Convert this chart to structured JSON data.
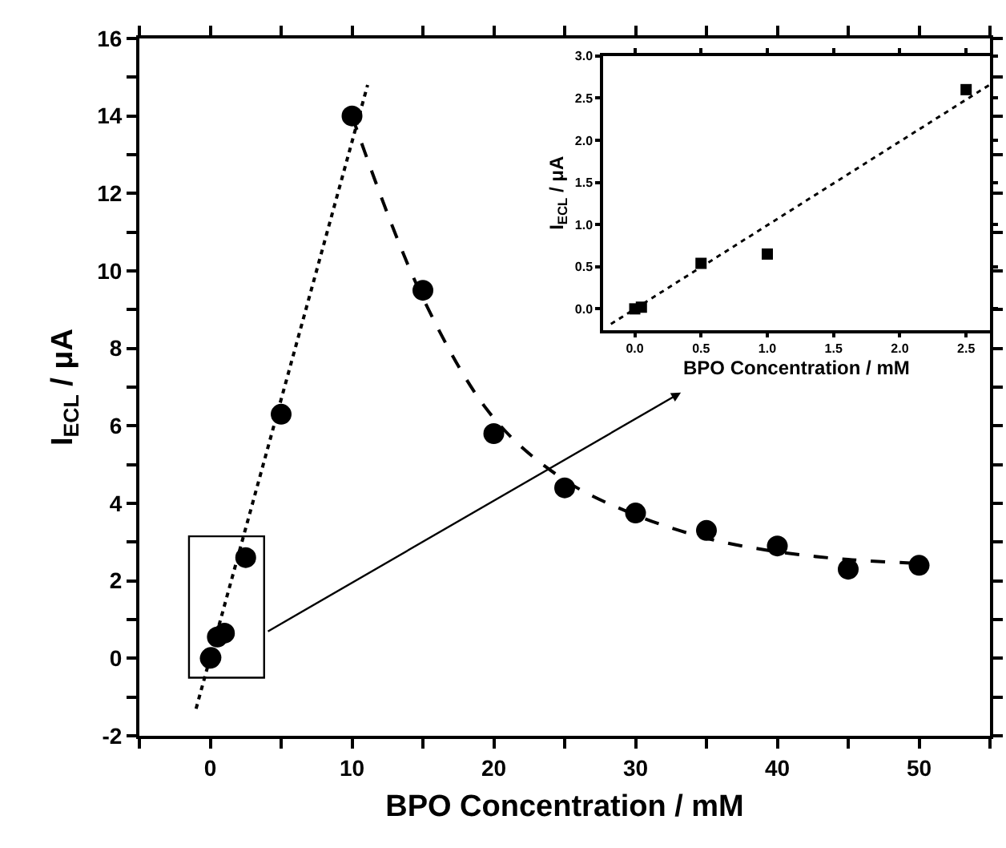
{
  "chart_data": [
    {
      "type": "scatter",
      "xlabel": "BPO Concentration / mM",
      "ylabel": "I$_{ECL}$ / μA",
      "xlim": [
        -5,
        55
      ],
      "ylim": [
        -2,
        16
      ],
      "xticks": [
        {
          "value": -5,
          "label": null
        },
        0,
        {
          "value": 5,
          "label": null
        },
        10,
        {
          "value": 15,
          "label": null
        },
        20,
        {
          "value": 25,
          "label": null
        },
        30,
        {
          "value": 35,
          "label": null
        },
        40,
        {
          "value": 45,
          "label": null
        },
        50,
        {
          "value": 55,
          "label": null
        }
      ],
      "yticks": [
        -2,
        {
          "value": -1,
          "label": null
        },
        0,
        {
          "value": 1,
          "label": null
        },
        2,
        {
          "value": 3,
          "label": null
        },
        4,
        {
          "value": 5,
          "label": null
        },
        6,
        {
          "value": 7,
          "label": null
        },
        8,
        {
          "value": 9,
          "label": null
        },
        10,
        {
          "value": 11,
          "label": null
        },
        12,
        {
          "value": 13,
          "label": null
        },
        14,
        {
          "value": 15,
          "label": null
        },
        16
      ],
      "series": [
        {
          "marker": "circle",
          "color": "#000000",
          "x": [
            0,
            0.05,
            0.5,
            1,
            2.5,
            5,
            10,
            15,
            20,
            25,
            30,
            35,
            40,
            45,
            50
          ],
          "values": [
            0,
            0.02,
            0.55,
            0.65,
            2.6,
            6.3,
            14,
            9.5,
            5.8,
            4.4,
            3.75,
            3.3,
            2.9,
            2.3,
            2.4
          ]
        },
        {
          "type": "line",
          "line_style": "dotted",
          "color": "#000000",
          "x": [
            -1.0,
            11.1
          ],
          "values": [
            -1.3,
            14.8
          ]
        },
        {
          "type": "line",
          "line_style": "dashed",
          "color": "#000000",
          "x": [
            10,
            15,
            20,
            25,
            30,
            35,
            40,
            45,
            50
          ],
          "values": [
            14,
            9.3,
            6.2,
            4.6,
            3.7,
            3.1,
            2.75,
            2.55,
            2.45
          ]
        }
      ]
    },
    {
      "type": "scatter",
      "xlabel": "BPO Concentration / mM",
      "ylabel": "I$_{ECL}$ / μA",
      "xlim": [
        -0.24,
        2.68
      ],
      "ylim": [
        -0.25,
        3.0
      ],
      "xticks": [
        {
          "value": 0,
          "label": "0.0"
        },
        0.5,
        {
          "value": 1,
          "label": "1.0"
        },
        1.5,
        {
          "value": 2,
          "label": "2.0"
        },
        2.5
      ],
      "yticks": [
        {
          "value": 0,
          "label": "0.0"
        },
        0.5,
        {
          "value": 1,
          "label": "1.0"
        },
        1.5,
        {
          "value": 2,
          "label": "2.0"
        },
        2.5,
        {
          "value": 3,
          "label": "3.0"
        }
      ],
      "series": [
        {
          "marker": "square",
          "color": "#000000",
          "x": [
            0,
            0.05,
            0.5,
            1,
            2.5
          ],
          "values": [
            0,
            0.02,
            0.54,
            0.65,
            2.6
          ]
        },
        {
          "type": "line",
          "line_style": "dotted",
          "color": "#000000",
          "x": [
            -0.18,
            2.68
          ],
          "values": [
            -0.18,
            2.66
          ]
        }
      ]
    }
  ]
}
